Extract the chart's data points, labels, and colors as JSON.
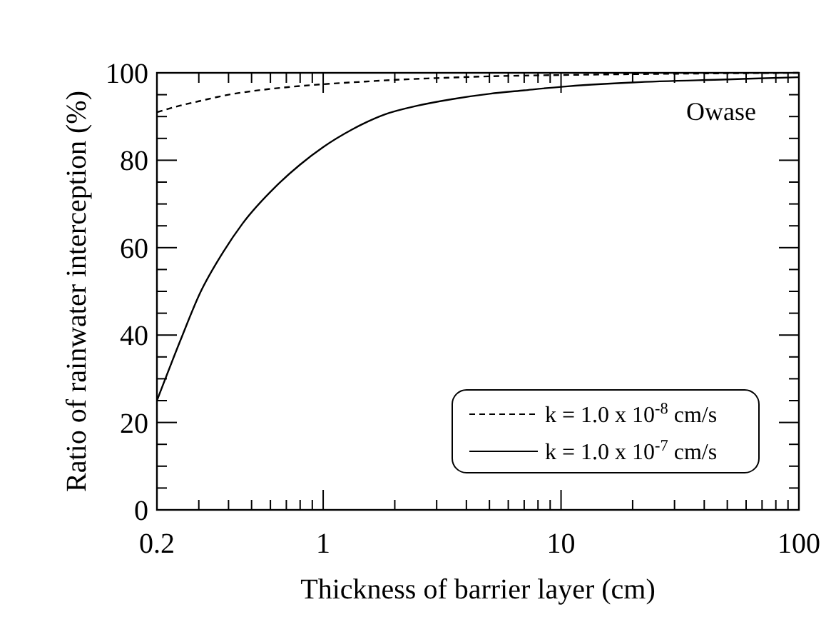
{
  "chart_data": {
    "type": "line",
    "xlabel": "Thickness of barrier layer  (cm)",
    "ylabel": "Ratio of rainwater interception   (%)",
    "log": "x",
    "xlim": [
      0.2,
      100
    ],
    "ylim": [
      0,
      100
    ],
    "xticks": [
      0.2,
      {
        "value": 0.3,
        "label": null
      },
      {
        "value": 0.4,
        "label": null
      },
      {
        "value": 0.5,
        "label": null
      },
      {
        "value": 0.6,
        "label": null
      },
      {
        "value": 0.7,
        "label": null
      },
      {
        "value": 0.8,
        "label": null
      },
      {
        "value": 0.9,
        "label": null
      },
      1,
      {
        "value": 2,
        "label": null
      },
      {
        "value": 3,
        "label": null
      },
      {
        "value": 4,
        "label": null
      },
      {
        "value": 5,
        "label": null
      },
      {
        "value": 6,
        "label": null
      },
      {
        "value": 7,
        "label": null
      },
      {
        "value": 8,
        "label": null
      },
      {
        "value": 9,
        "label": null
      },
      10,
      {
        "value": 20,
        "label": null
      },
      {
        "value": 30,
        "label": null
      },
      {
        "value": 40,
        "label": null
      },
      {
        "value": 50,
        "label": null
      },
      {
        "value": 60,
        "label": null
      },
      {
        "value": 70,
        "label": null
      },
      {
        "value": 80,
        "label": null
      },
      {
        "value": 90,
        "label": null
      },
      100
    ],
    "yticks": [
      0,
      {
        "value": 5,
        "label": null
      },
      {
        "value": 10,
        "label": null
      },
      {
        "value": 15,
        "label": null
      },
      20,
      {
        "value": 25,
        "label": null
      },
      {
        "value": 30,
        "label": null
      },
      {
        "value": 35,
        "label": null
      },
      40,
      {
        "value": 45,
        "label": null
      },
      {
        "value": 50,
        "label": null
      },
      {
        "value": 55,
        "label": null
      },
      60,
      {
        "value": 65,
        "label": null
      },
      {
        "value": 70,
        "label": null
      },
      {
        "value": 75,
        "label": null
      },
      80,
      {
        "value": 85,
        "label": null
      },
      {
        "value": 90,
        "label": null
      },
      {
        "value": 95,
        "label": null
      },
      100
    ],
    "grid": false,
    "legend": "bottom right",
    "annotations": [
      "Owase"
    ],
    "series": [
      {
        "name": "k = 1.0 x 10$^{-8}$ cm/s",
        "color": "#000000",
        "line_style": "dashed",
        "x": [
          0.2,
          0.25,
          0.3,
          0.4,
          0.5,
          0.7,
          1,
          1.5,
          2,
          3,
          5,
          10,
          20,
          50,
          100
        ],
        "values": [
          91,
          92.5,
          93.5,
          95,
          95.8,
          96.7,
          97.4,
          98,
          98.4,
          98.8,
          99.2,
          99.5,
          99.7,
          99.9,
          100
        ]
      },
      {
        "name": "k = 1.0 x 10$^{-7}$ cm/s",
        "color": "#000000",
        "line_style": "solid",
        "x": [
          0.2,
          0.252,
          0.303,
          0.38,
          0.458,
          0.632,
          0.8,
          1,
          1.32,
          1.82,
          2.5,
          3.5,
          5,
          7,
          10,
          20,
          50,
          100
        ],
        "values": [
          25,
          39,
          49.5,
          59,
          65.5,
          74,
          79,
          83,
          87,
          90.5,
          92.5,
          94,
          95.2,
          96,
          96.8,
          97.8,
          98.5,
          99
        ]
      }
    ]
  }
}
